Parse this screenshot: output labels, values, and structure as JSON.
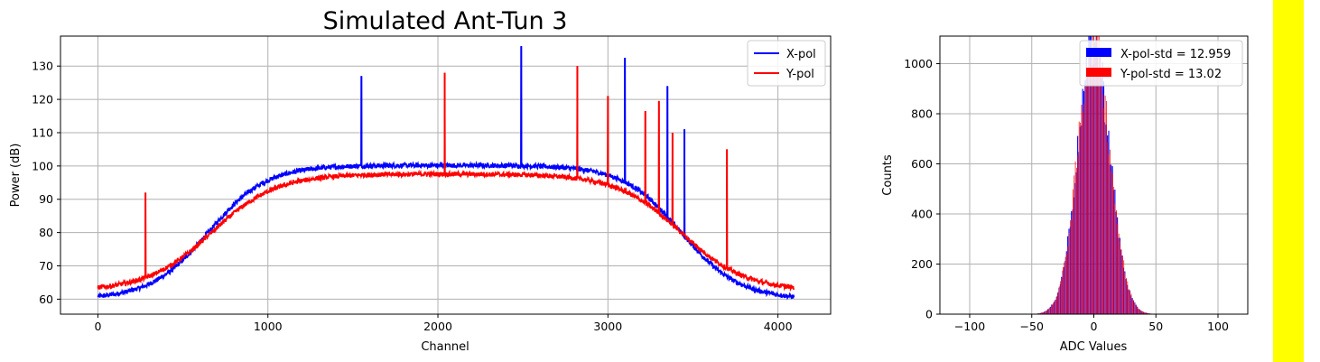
{
  "chart_data": [
    {
      "type": "line",
      "title": "Simulated Ant-Tun 3",
      "xlabel": "Channel",
      "ylabel": "Power (dB)",
      "xlim": [
        -220,
        4310
      ],
      "ylim": [
        55.5,
        139
      ],
      "x_ticks": [
        0,
        1000,
        2000,
        3000,
        4000
      ],
      "y_ticks": [
        60,
        70,
        80,
        90,
        100,
        110,
        120,
        130
      ],
      "grid": true,
      "legend_position": "top-right",
      "n_channels": 4096,
      "series": [
        {
          "name": "X-pol",
          "color": "#0000ff",
          "baseline": {
            "low": 60,
            "plateau": 100.2,
            "rise_center": 650,
            "fall_center": 3430,
            "width": 170
          },
          "spikes": [
            {
              "x": 1550,
              "y": 127
            },
            {
              "x": 2490,
              "y": 136
            },
            {
              "x": 3100,
              "y": 132.5
            },
            {
              "x": 3350,
              "y": 124
            },
            {
              "x": 3450,
              "y": 111
            }
          ]
        },
        {
          "name": "Y-pol",
          "color": "#ff0000",
          "baseline": {
            "low": 62.5,
            "plateau": 97.6,
            "rise_center": 670,
            "fall_center": 3430,
            "width": 190
          },
          "spikes": [
            {
              "x": 280,
              "y": 92
            },
            {
              "x": 2040,
              "y": 128
            },
            {
              "x": 2820,
              "y": 130
            },
            {
              "x": 3000,
              "y": 121
            },
            {
              "x": 3220,
              "y": 116.5
            },
            {
              "x": 3300,
              "y": 119.5
            },
            {
              "x": 3380,
              "y": 110
            },
            {
              "x": 3700,
              "y": 105
            }
          ]
        }
      ]
    },
    {
      "type": "bar",
      "title": "",
      "xlabel": "ADC Values",
      "ylabel": "Counts",
      "xlim": [
        -124,
        124
      ],
      "ylim": [
        0,
        1110
      ],
      "x_ticks": [
        -100,
        -50,
        0,
        50,
        100
      ],
      "y_ticks": [
        0,
        200,
        400,
        600,
        800,
        1000
      ],
      "grid": true,
      "legend_position": "top-right",
      "series": [
        {
          "name": "X-pol-std = 12.959",
          "color": "#0000ff",
          "std": 12.959
        },
        {
          "name": "Y-pol-std = 13.02",
          "color": "#ff0000",
          "std": 13.02
        }
      ]
    }
  ]
}
